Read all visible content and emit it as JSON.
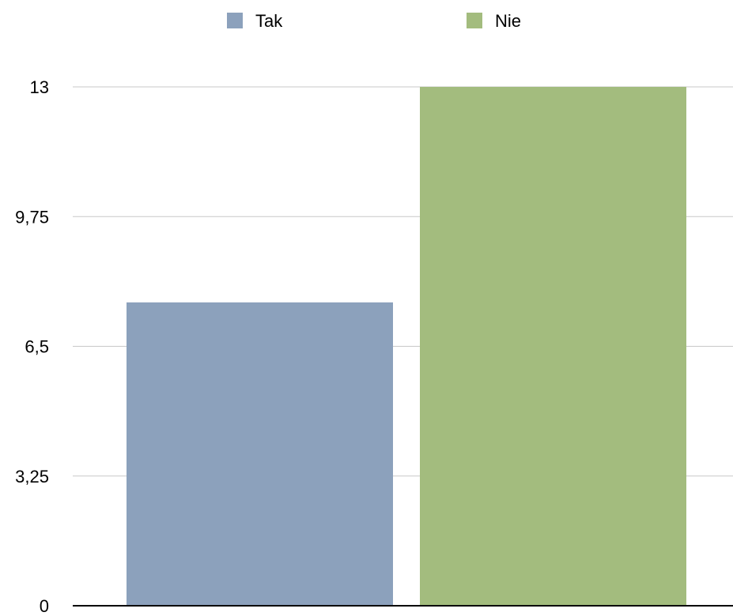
{
  "chart_data": {
    "type": "bar",
    "categories": [
      ""
    ],
    "series": [
      {
        "name": "Tak",
        "values": [
          7.6
        ],
        "color": "#8ca1bc"
      },
      {
        "name": "Nie",
        "values": [
          13
        ],
        "color": "#a3bc7e"
      }
    ],
    "ylim": [
      0,
      13
    ],
    "y_ticks": [
      0,
      3.25,
      6.5,
      9.75,
      13
    ],
    "y_tick_labels": [
      "0",
      "3,25",
      "6,5",
      "9,75",
      "13"
    ],
    "grid": true,
    "legend_position": "top-center",
    "gridline_color": "#c8c8c8",
    "axis_color": "#000000"
  }
}
